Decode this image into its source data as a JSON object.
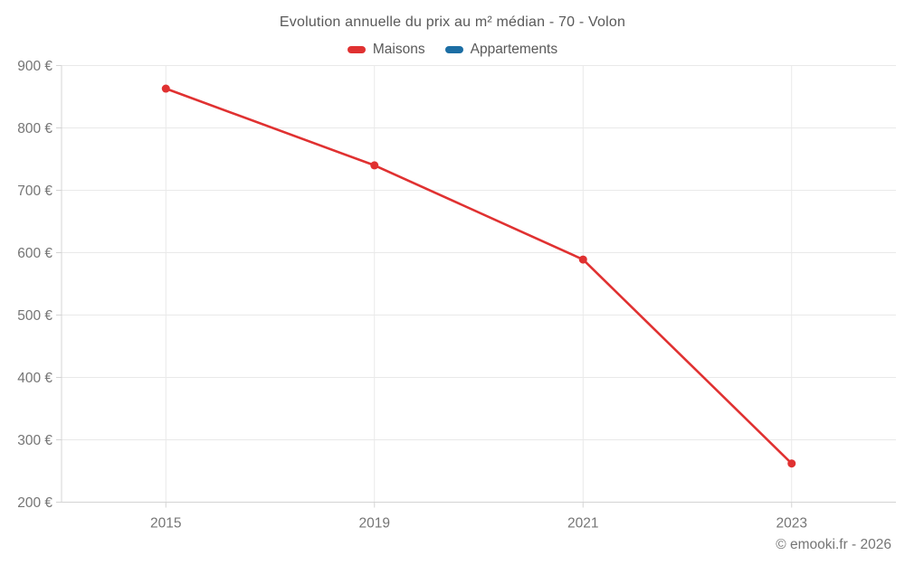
{
  "chart_data": {
    "type": "line",
    "title": "Evolution annuelle du prix au m² médian - 70 - Volon",
    "xlabel": "",
    "ylabel": "",
    "categories": [
      "2015",
      "2019",
      "2021",
      "2023"
    ],
    "series": [
      {
        "name": "Maisons",
        "color": "#e03131",
        "values": [
          863,
          740,
          589,
          262
        ]
      },
      {
        "name": "Appartements",
        "color": "#1c6ea4",
        "values": []
      }
    ],
    "ylim": [
      200,
      900
    ],
    "ytick_step": 100,
    "ytick_labels": [
      "200 €",
      "300 €",
      "400 €",
      "500 €",
      "600 €",
      "700 €",
      "800 €",
      "900 €"
    ],
    "grid": true,
    "legend_position": "top"
  },
  "footer": {
    "copyright": "© emooki.fr - 2026"
  },
  "style": {
    "grid_color": "#e9e9e9",
    "axis_color": "#d4d4d4",
    "tick_label_color": "#757575",
    "title_color": "#595959",
    "background": "#ffffff"
  }
}
